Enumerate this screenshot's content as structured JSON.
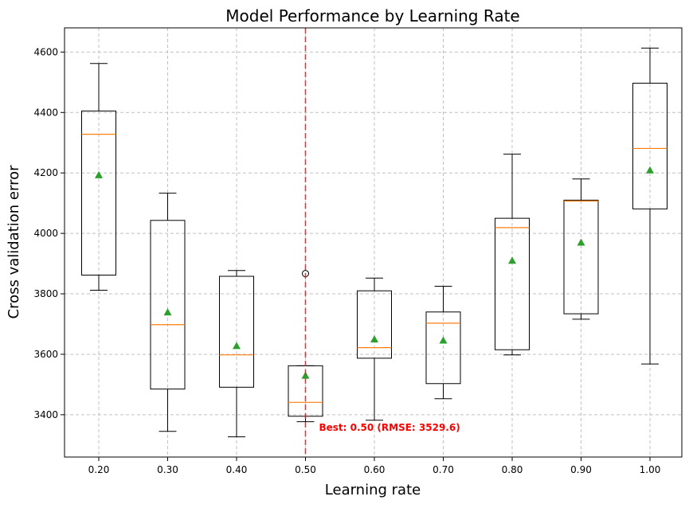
{
  "chart_data": {
    "type": "box",
    "title": "Model Performance by Learning Rate",
    "xlabel": "Learning rate",
    "ylabel": "Cross validation error",
    "ylim": [
      3260,
      4680
    ],
    "y_ticks": [
      3400,
      3600,
      3800,
      4000,
      4200,
      4400,
      4600
    ],
    "grid": true,
    "categories": [
      "0.20",
      "0.30",
      "0.40",
      "0.50",
      "0.60",
      "0.70",
      "0.80",
      "0.90",
      "1.00"
    ],
    "boxes": [
      {
        "label": "0.20",
        "whisker_low": 3812,
        "q1": 3862,
        "median": 4328,
        "q3": 4405,
        "whisker_high": 4562,
        "mean": 4193,
        "outliers": []
      },
      {
        "label": "0.30",
        "whisker_low": 3345,
        "q1": 3485,
        "median": 3698,
        "q3": 4043,
        "whisker_high": 4133,
        "mean": 3739,
        "outliers": []
      },
      {
        "label": "0.40",
        "whisker_low": 3327,
        "q1": 3491,
        "median": 3598,
        "q3": 3858,
        "whisker_high": 3877,
        "mean": 3628,
        "outliers": []
      },
      {
        "label": "0.50",
        "whisker_low": 3377,
        "q1": 3395,
        "median": 3441,
        "q3": 3562,
        "whisker_high": 3562,
        "mean": 3529.6,
        "outliers": [
          3867
        ]
      },
      {
        "label": "0.60",
        "whisker_low": 3382,
        "q1": 3587,
        "median": 3622,
        "q3": 3810,
        "whisker_high": 3852,
        "mean": 3650,
        "outliers": []
      },
      {
        "label": "0.70",
        "whisker_low": 3453,
        "q1": 3503,
        "median": 3703,
        "q3": 3740,
        "whisker_high": 3825,
        "mean": 3646,
        "outliers": []
      },
      {
        "label": "0.80",
        "whisker_low": 3598,
        "q1": 3615,
        "median": 4019,
        "q3": 4050,
        "whisker_high": 4262,
        "mean": 3910,
        "outliers": []
      },
      {
        "label": "0.90",
        "whisker_low": 3716,
        "q1": 3734,
        "median": 4107,
        "q3": 4110,
        "whisker_high": 4180,
        "mean": 3970,
        "outliers": []
      },
      {
        "label": "1.00",
        "whisker_low": 3568,
        "q1": 4081,
        "median": 4281,
        "q3": 4497,
        "whisker_high": 4613,
        "mean": 4209,
        "outliers": []
      }
    ],
    "best_marker": {
      "category": "0.50",
      "annotation": "Best: 0.50 (RMSE: 3529.6)"
    },
    "colors": {
      "box": "#000000",
      "median": "#ff7f0e",
      "mean": "#2ca02c",
      "best_line": "#e41a1c",
      "annotation": "#ff0000",
      "grid": "#c0c0c0"
    }
  }
}
